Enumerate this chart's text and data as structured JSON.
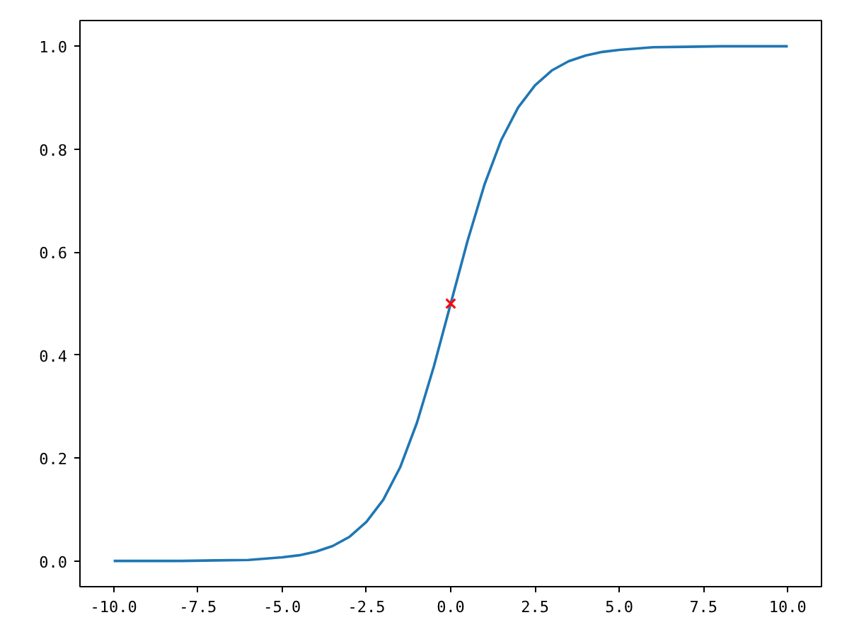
{
  "chart_data": {
    "type": "line",
    "xlim": [
      -11,
      11
    ],
    "ylim": [
      -0.05,
      1.05
    ],
    "xticks": [
      {
        "value": -10,
        "label": "-10.0"
      },
      {
        "value": -7.5,
        "label": "-7.5"
      },
      {
        "value": -5,
        "label": "-5.0"
      },
      {
        "value": -2.5,
        "label": "-2.5"
      },
      {
        "value": 0,
        "label": "0.0"
      },
      {
        "value": 2.5,
        "label": "2.5"
      },
      {
        "value": 5,
        "label": "5.0"
      },
      {
        "value": 7.5,
        "label": "7.5"
      },
      {
        "value": 10,
        "label": "10.0"
      }
    ],
    "yticks": [
      {
        "value": 0,
        "label": "0.0"
      },
      {
        "value": 0.2,
        "label": "0.2"
      },
      {
        "value": 0.4,
        "label": "0.4"
      },
      {
        "value": 0.6,
        "label": "0.6"
      },
      {
        "value": 0.8,
        "label": "0.8"
      },
      {
        "value": 1,
        "label": "1.0"
      }
    ],
    "grid": false,
    "series": [
      {
        "color": "#1f77b4",
        "marker": "none",
        "line_style": "solid",
        "x": [
          -10,
          -9,
          -8,
          -7,
          -6,
          -5,
          -4.5,
          -4,
          -3.5,
          -3,
          -2.5,
          -2,
          -1.5,
          -1,
          -0.5,
          0,
          0.5,
          1,
          1.5,
          2,
          2.5,
          3,
          3.5,
          4,
          4.5,
          5,
          6,
          7,
          8,
          9,
          10
        ],
        "values": [
          0.0,
          0.0,
          0.0,
          0.001,
          0.002,
          0.007,
          0.011,
          0.018,
          0.029,
          0.047,
          0.076,
          0.119,
          0.182,
          0.269,
          0.378,
          0.5,
          0.622,
          0.731,
          0.818,
          0.881,
          0.924,
          0.953,
          0.971,
          0.982,
          0.989,
          0.993,
          0.998,
          0.999,
          1.0,
          1.0,
          1.0
        ]
      },
      {
        "type": "scatter",
        "color": "#ff0000",
        "marker": "cross",
        "x": [
          0
        ],
        "values": [
          0.5
        ]
      }
    ]
  }
}
